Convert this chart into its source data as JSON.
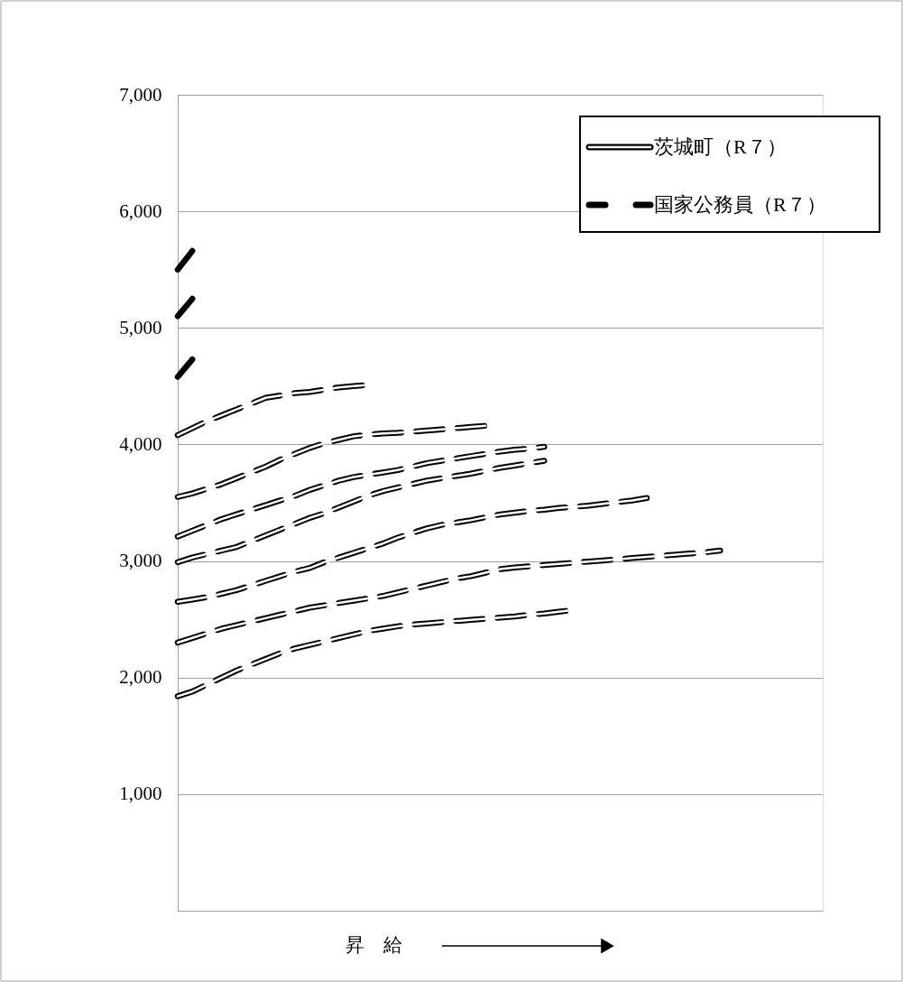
{
  "chart_data": {
    "type": "line",
    "xlabel": "昇　給",
    "categories": [
      null,
      null,
      null,
      null,
      null,
      null,
      null,
      null,
      null,
      null,
      null,
      null,
      null,
      null,
      null,
      null,
      null,
      null,
      null,
      null,
      null,
      null,
      null,
      null,
      null,
      null,
      null,
      null,
      null,
      null,
      null,
      null,
      null,
      null,
      null,
      null,
      null,
      null,
      null,
      null,
      null,
      null,
      null,
      null,
      null
    ],
    "ylim": [
      0,
      7000
    ],
    "yticks": [
      {
        "value": 0,
        "label": null
      },
      {
        "value": 1000,
        "label": "1,000"
      },
      {
        "value": 2000,
        "label": "2,000"
      },
      {
        "value": 3000,
        "label": "3,000"
      },
      {
        "value": 4000,
        "label": "4,000"
      },
      {
        "value": 5000,
        "label": "5,000"
      },
      {
        "value": 6000,
        "label": "6,000"
      },
      {
        "value": 7000,
        "label": "7,000"
      }
    ],
    "grid": "y",
    "tick_labels": "y",
    "legend": "top right",
    "series": [
      {
        "name": "茨城町（R７）",
        "color": "#ffffff",
        "line_style": "solid",
        "values": [
          1840,
          1880,
          1940,
          2000,
          2060,
          2110,
          2160,
          2210,
          2250,
          2280,
          2310,
          2340,
          2370,
          2400,
          2420,
          2440,
          2455,
          2465,
          2475,
          2485,
          2495,
          2505,
          2515,
          2525,
          2540,
          2550,
          2565,
          2580,
          null,
          null,
          null,
          null,
          null,
          null,
          null,
          null,
          null,
          null,
          null,
          null,
          null,
          null,
          null,
          null,
          null
        ]
      },
      {
        "color": "#ffffff",
        "line_style": "solid",
        "values": [
          2300,
          2340,
          2380,
          2420,
          2450,
          2480,
          2510,
          2540,
          2570,
          2600,
          2620,
          2640,
          2660,
          2680,
          2700,
          2730,
          2760,
          2790,
          2820,
          2850,
          2870,
          2900,
          2930,
          2945,
          2955,
          2965,
          2975,
          2985,
          2995,
          3005,
          3015,
          3025,
          3035,
          3045,
          3055,
          3065,
          3075,
          3090,
          null,
          null,
          null,
          null,
          null,
          null,
          null
        ]
      },
      {
        "color": "#ffffff",
        "line_style": "solid",
        "values": [
          2650,
          2670,
          2690,
          2720,
          2750,
          2790,
          2830,
          2870,
          2910,
          2940,
          2990,
          3030,
          3070,
          3110,
          3150,
          3200,
          3240,
          3280,
          3310,
          3330,
          3350,
          3375,
          3400,
          3415,
          3430,
          3440,
          3455,
          3465,
          3475,
          3490,
          3505,
          3520,
          3540,
          null,
          null,
          null,
          null,
          null,
          null,
          null,
          null,
          null,
          null,
          null,
          null
        ]
      },
      {
        "color": "#ffffff",
        "line_style": "solid",
        "values": [
          2990,
          3030,
          3060,
          3090,
          3120,
          3170,
          3220,
          3270,
          3320,
          3370,
          3410,
          3460,
          3510,
          3560,
          3600,
          3630,
          3660,
          3690,
          3710,
          3730,
          3750,
          3775,
          3800,
          3820,
          3840,
          3860,
          null,
          null,
          null,
          null,
          null,
          null,
          null,
          null,
          null,
          null,
          null,
          null,
          null,
          null,
          null,
          null,
          null,
          null,
          null
        ]
      },
      {
        "color": "#ffffff",
        "line_style": "solid",
        "values": [
          3210,
          3260,
          3310,
          3360,
          3400,
          3440,
          3480,
          3520,
          3560,
          3610,
          3650,
          3690,
          3720,
          3740,
          3760,
          3780,
          3810,
          3840,
          3860,
          3880,
          3900,
          3920,
          3940,
          3955,
          3965,
          3980,
          null,
          null,
          null,
          null,
          null,
          null,
          null,
          null,
          null,
          null,
          null,
          null,
          null,
          null,
          null,
          null,
          null,
          null,
          null
        ]
      },
      {
        "color": "#ffffff",
        "line_style": "solid",
        "values": [
          3550,
          3580,
          3620,
          3660,
          3710,
          3760,
          3810,
          3870,
          3920,
          3970,
          4010,
          4040,
          4070,
          4085,
          4095,
          4100,
          4110,
          4120,
          4130,
          4140,
          4150,
          4160,
          null,
          null,
          null,
          null,
          null,
          null,
          null,
          null,
          null,
          null,
          null,
          null,
          null,
          null,
          null,
          null,
          null,
          null,
          null,
          null,
          null,
          null,
          null
        ]
      },
      {
        "color": "#ffffff",
        "line_style": "solid",
        "values": [
          4080,
          4140,
          4200,
          4250,
          4300,
          4350,
          4400,
          4420,
          4440,
          4450,
          4470,
          4490,
          4500,
          4510,
          null,
          null,
          null,
          null,
          null,
          null,
          null,
          null,
          null,
          null,
          null,
          null,
          null,
          null,
          null,
          null,
          null,
          null,
          null,
          null,
          null,
          null,
          null,
          null,
          null,
          null,
          null,
          null,
          null,
          null,
          null
        ]
      },
      {
        "name": "国家公務員（R７）",
        "color": "#000000",
        "line_style": "dashed",
        "values": [
          1840,
          1880,
          1940,
          2000,
          2060,
          2110,
          2160,
          2210,
          2250,
          2280,
          2310,
          2340,
          2370,
          2400,
          2420,
          2440,
          2455,
          2465,
          2475,
          2485,
          2495,
          2505,
          2515,
          2525,
          2540,
          2550,
          2565,
          2580,
          null,
          null,
          null,
          null,
          null,
          null,
          null,
          null,
          null,
          null,
          null,
          null,
          null,
          null,
          null,
          null,
          null
        ]
      },
      {
        "color": "#000000",
        "line_style": "dashed",
        "values": [
          2300,
          2340,
          2380,
          2420,
          2450,
          2480,
          2510,
          2540,
          2570,
          2600,
          2620,
          2640,
          2660,
          2680,
          2700,
          2730,
          2760,
          2790,
          2820,
          2850,
          2870,
          2900,
          2930,
          2945,
          2955,
          2965,
          2975,
          2985,
          2995,
          3005,
          3015,
          3025,
          3035,
          3045,
          3055,
          3065,
          3075,
          3090,
          null,
          null,
          null,
          null,
          null,
          null,
          null
        ]
      },
      {
        "color": "#000000",
        "line_style": "dashed",
        "values": [
          2650,
          2670,
          2690,
          2720,
          2750,
          2790,
          2830,
          2870,
          2910,
          2940,
          2990,
          3030,
          3070,
          3110,
          3150,
          3200,
          3240,
          3280,
          3310,
          3330,
          3350,
          3375,
          3400,
          3415,
          3430,
          3440,
          3455,
          3465,
          3475,
          3490,
          3505,
          3520,
          3540,
          null,
          null,
          null,
          null,
          null,
          null,
          null,
          null,
          null,
          null,
          null,
          null
        ]
      },
      {
        "color": "#000000",
        "line_style": "dashed",
        "values": [
          2990,
          3030,
          3060,
          3090,
          3120,
          3170,
          3220,
          3270,
          3320,
          3370,
          3410,
          3460,
          3510,
          3560,
          3600,
          3630,
          3660,
          3690,
          3710,
          3730,
          3750,
          3775,
          3800,
          3820,
          3840,
          3860,
          null,
          null,
          null,
          null,
          null,
          null,
          null,
          null,
          null,
          null,
          null,
          null,
          null,
          null,
          null,
          null,
          null,
          null,
          null
        ]
      },
      {
        "color": "#000000",
        "line_style": "dashed",
        "values": [
          3210,
          3260,
          3310,
          3360,
          3400,
          3440,
          3480,
          3520,
          3560,
          3610,
          3650,
          3690,
          3720,
          3740,
          3760,
          3780,
          3810,
          3840,
          3860,
          3880,
          3900,
          3920,
          3940,
          3955,
          3965,
          3980,
          null,
          null,
          null,
          null,
          null,
          null,
          null,
          null,
          null,
          null,
          null,
          null,
          null,
          null,
          null,
          null,
          null,
          null,
          null
        ]
      },
      {
        "color": "#000000",
        "line_style": "dashed",
        "values": [
          3550,
          3580,
          3620,
          3660,
          3710,
          3760,
          3810,
          3870,
          3920,
          3970,
          4010,
          4040,
          4070,
          4085,
          4095,
          4100,
          4110,
          4120,
          4130,
          4140,
          4150,
          4160,
          null,
          null,
          null,
          null,
          null,
          null,
          null,
          null,
          null,
          null,
          null,
          null,
          null,
          null,
          null,
          null,
          null,
          null,
          null,
          null,
          null,
          null,
          null
        ]
      },
      {
        "color": "#000000",
        "line_style": "dashed",
        "values": [
          4080,
          4140,
          4200,
          4250,
          4300,
          4350,
          4400,
          4420,
          4440,
          4450,
          4470,
          4490,
          4500,
          4510,
          null,
          null,
          null,
          null,
          null,
          null,
          null,
          null,
          null,
          null,
          null,
          null,
          null,
          null,
          null,
          null,
          null,
          null,
          null,
          null,
          null,
          null,
          null,
          null,
          null,
          null,
          null,
          null,
          null,
          null,
          null
        ]
      },
      {
        "color": "#000000",
        "line_style": "dashed",
        "values": [
          4580,
          4730,
          null,
          null,
          null,
          null,
          null,
          null,
          null,
          null,
          null,
          null,
          null,
          null,
          null,
          null,
          null,
          null,
          null,
          null,
          null,
          null,
          null,
          null,
          null,
          null,
          null,
          null,
          null,
          null,
          null,
          null,
          null,
          null,
          null,
          null,
          null,
          null,
          null,
          null,
          null,
          null,
          null,
          null,
          null
        ]
      },
      {
        "color": "#000000",
        "line_style": "dashed",
        "values": [
          5100,
          5250,
          null,
          null,
          null,
          null,
          null,
          null,
          null,
          null,
          null,
          null,
          null,
          null,
          null,
          null,
          null,
          null,
          null,
          null,
          null,
          null,
          null,
          null,
          null,
          null,
          null,
          null,
          null,
          null,
          null,
          null,
          null,
          null,
          null,
          null,
          null,
          null,
          null,
          null,
          null,
          null,
          null,
          null,
          null
        ]
      },
      {
        "color": "#000000",
        "line_style": "dashed",
        "values": [
          5500,
          5660,
          null,
          null,
          null,
          null,
          null,
          null,
          null,
          null,
          null,
          null,
          null,
          null,
          null,
          null,
          null,
          null,
          null,
          null,
          null,
          null,
          null,
          null,
          null,
          null,
          null,
          null,
          null,
          null,
          null,
          null,
          null,
          null,
          null,
          null,
          null,
          null,
          null,
          null,
          null,
          null,
          null,
          null,
          null
        ]
      }
    ]
  }
}
